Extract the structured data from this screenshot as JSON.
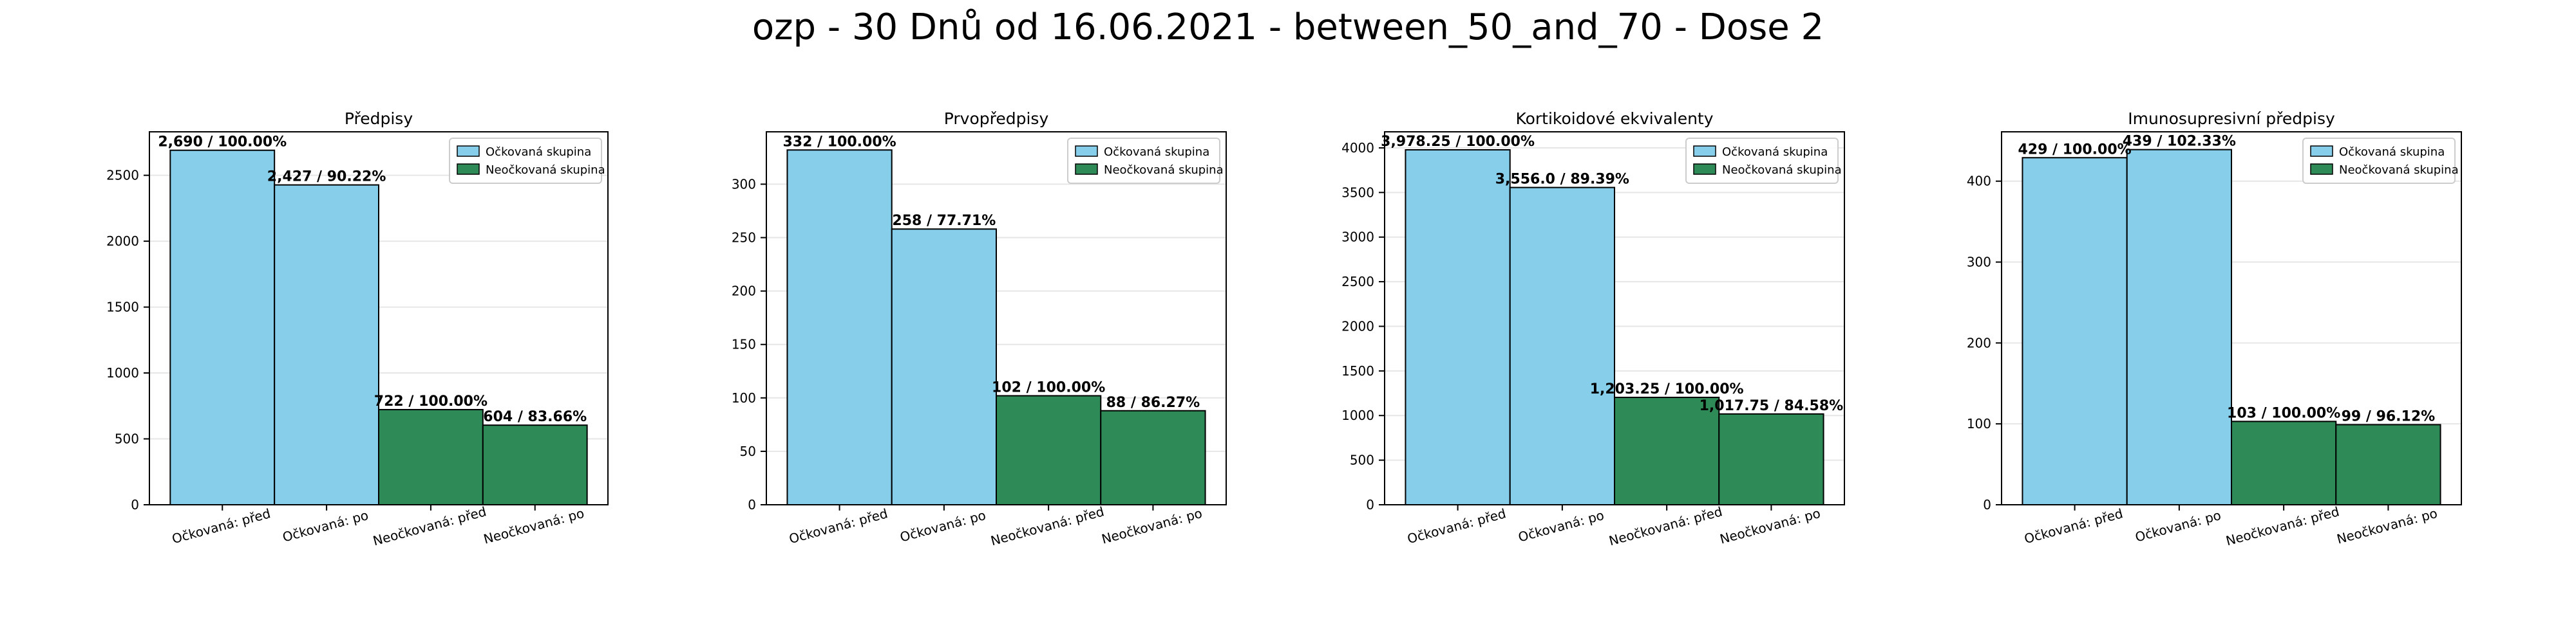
{
  "title": "ozp - 30 Dnů od 16.06.2021 - between_50_and_70 - Dose 2",
  "colors": {
    "vaccinated": "#87ceeb",
    "unvaccinated": "#2e8b57",
    "edge": "#000000",
    "grid": "#e6e6e6"
  },
  "legend_labels": [
    "Očkovaná skupina",
    "Neočkovaná skupina"
  ],
  "chart_data": [
    {
      "type": "bar",
      "title": "Předpisy",
      "categories": [
        "Očkovaná: před",
        "Očkovaná: po",
        "Neočkovaná: před",
        "Neočkovaná: po"
      ],
      "values": [
        2690,
        2427,
        722,
        604
      ],
      "bar_labels": [
        "2,690 / 100.00%",
        "2,427 / 90.22%",
        "722 / 100.00%",
        "604 / 83.66%"
      ],
      "ylim": [
        0,
        2830
      ],
      "yticks": [
        0,
        500,
        1000,
        1500,
        2000,
        2500
      ],
      "legend": "top-right",
      "grid": true
    },
    {
      "type": "bar",
      "title": "Prvopředpisy",
      "categories": [
        "Očkovaná: před",
        "Očkovaná: po",
        "Neočkovaná: před",
        "Neočkovaná: po"
      ],
      "values": [
        332,
        258,
        102,
        88
      ],
      "bar_labels": [
        "332 / 100.00%",
        "258 / 77.71%",
        "102 / 100.00%",
        "88 / 86.27%"
      ],
      "ylim": [
        0,
        349
      ],
      "yticks": [
        0,
        50,
        100,
        150,
        200,
        250,
        300
      ],
      "legend": "top-right",
      "grid": true
    },
    {
      "type": "bar",
      "title": "Kortikoidové ekvivalenty",
      "categories": [
        "Očkovaná: před",
        "Očkovaná: po",
        "Neočkovaná: před",
        "Neočkovaná: po"
      ],
      "values": [
        3978.25,
        3556.0,
        1203.25,
        1017.75
      ],
      "bar_labels": [
        "3,978.25 / 100.00%",
        "3,556.0 / 89.39%",
        "1,203.25 / 100.00%",
        "1,017.75 / 84.58%"
      ],
      "ylim": [
        0,
        4180
      ],
      "yticks": [
        0,
        500,
        1000,
        1500,
        2000,
        2500,
        3000,
        3500,
        4000
      ],
      "legend": "top-right",
      "grid": true
    },
    {
      "type": "bar",
      "title": "Imunosupresivní předpisy",
      "categories": [
        "Očkovaná: před",
        "Očkovaná: po",
        "Neočkovaná: před",
        "Neočkovaná: po"
      ],
      "values": [
        429,
        439,
        103,
        99
      ],
      "bar_labels": [
        "429 / 100.00%",
        "439 / 102.33%",
        "103 / 100.00%",
        "99 / 96.12%"
      ],
      "ylim": [
        0,
        461
      ],
      "yticks": [
        0,
        100,
        200,
        300,
        400
      ],
      "legend": "top-right",
      "grid": true
    }
  ]
}
